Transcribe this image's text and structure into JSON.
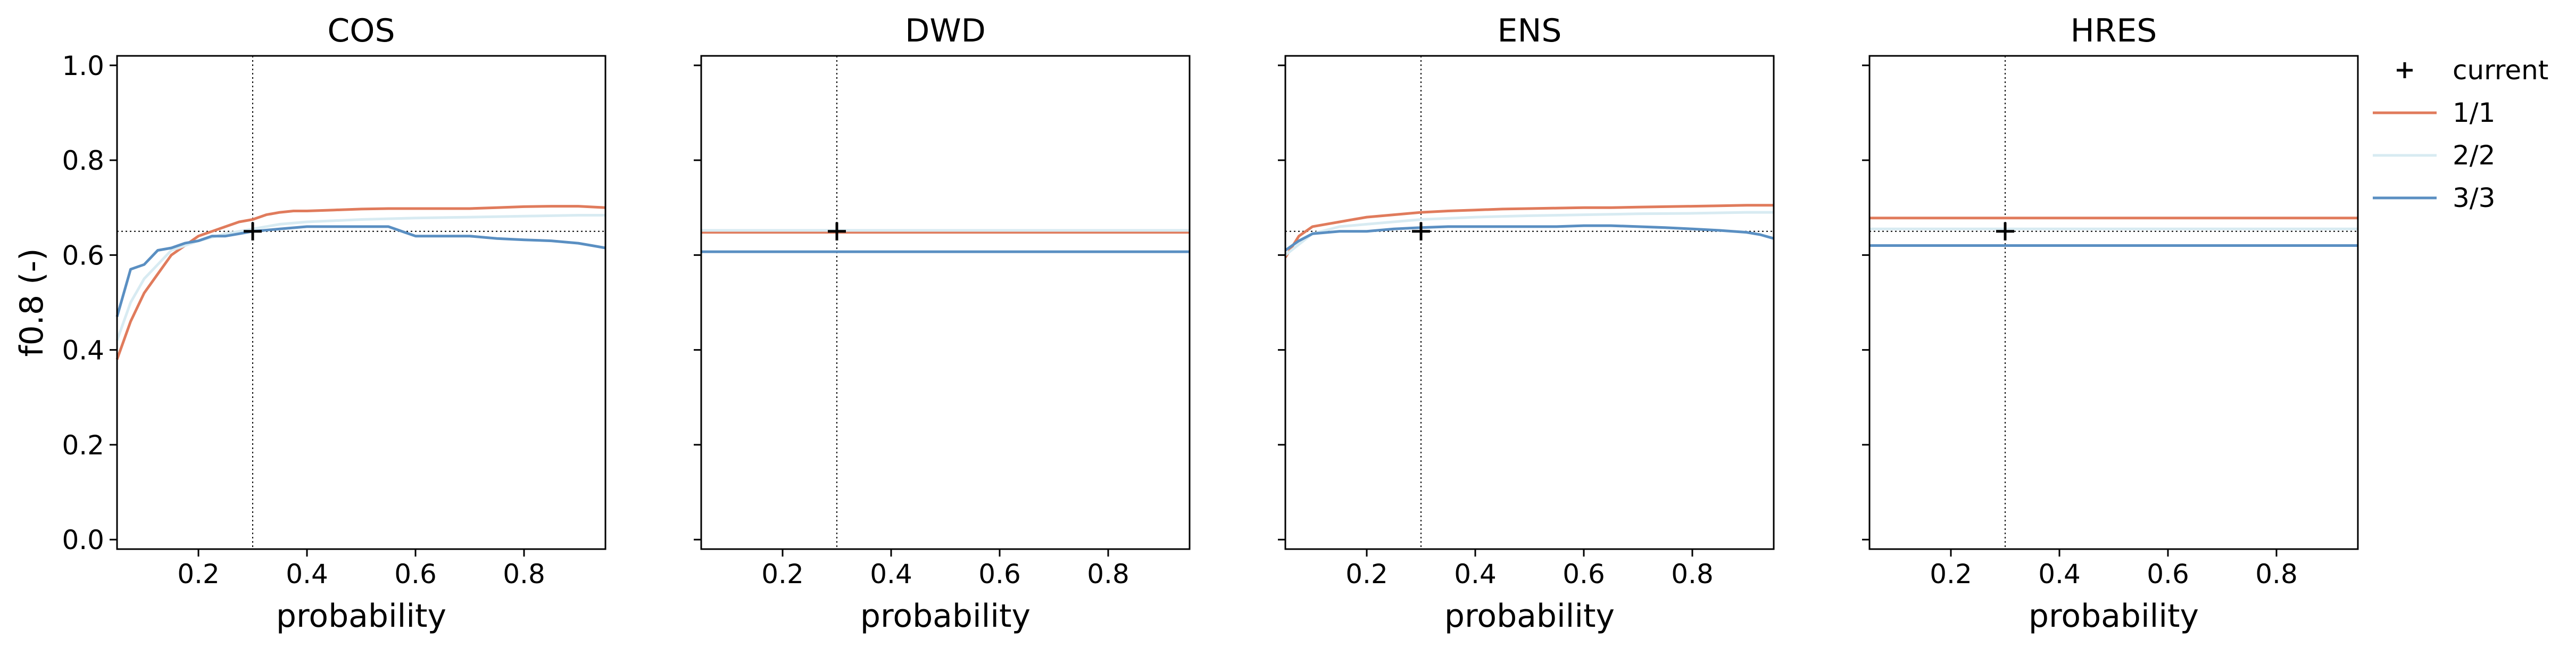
{
  "chart_data": [
    {
      "type": "line",
      "title": "COS",
      "xlabel": "probability",
      "ylabel": "f0.8 (-)",
      "xlim": [
        0.05,
        0.95
      ],
      "ylim": [
        -0.02,
        1.02
      ],
      "xticks": [
        0.2,
        0.4,
        0.6,
        0.8
      ],
      "yticks": [
        0.0,
        0.2,
        0.4,
        0.6,
        0.8,
        1.0
      ],
      "vline": 0.3,
      "hline": 0.65,
      "current": {
        "x": 0.3,
        "y": 0.65
      },
      "series": [
        {
          "name": "1/1",
          "x": [
            0.05,
            0.075,
            0.1,
            0.125,
            0.15,
            0.175,
            0.2,
            0.225,
            0.25,
            0.275,
            0.3,
            0.325,
            0.35,
            0.375,
            0.4,
            0.45,
            0.5,
            0.55,
            0.6,
            0.65,
            0.7,
            0.75,
            0.8,
            0.85,
            0.9,
            0.95
          ],
          "y": [
            0.38,
            0.46,
            0.52,
            0.56,
            0.6,
            0.62,
            0.64,
            0.65,
            0.66,
            0.67,
            0.675,
            0.685,
            0.69,
            0.693,
            0.693,
            0.695,
            0.697,
            0.698,
            0.698,
            0.698,
            0.698,
            0.7,
            0.702,
            0.703,
            0.703,
            0.7
          ]
        },
        {
          "name": "2/2",
          "x": [
            0.05,
            0.075,
            0.1,
            0.125,
            0.15,
            0.2,
            0.25,
            0.3,
            0.35,
            0.4,
            0.5,
            0.6,
            0.7,
            0.8,
            0.9,
            0.95
          ],
          "y": [
            0.42,
            0.5,
            0.55,
            0.58,
            0.61,
            0.63,
            0.645,
            0.655,
            0.665,
            0.67,
            0.675,
            0.678,
            0.68,
            0.682,
            0.684,
            0.684
          ]
        },
        {
          "name": "3/3",
          "x": [
            0.05,
            0.075,
            0.1,
            0.125,
            0.15,
            0.175,
            0.2,
            0.225,
            0.25,
            0.275,
            0.3,
            0.35,
            0.4,
            0.45,
            0.5,
            0.55,
            0.6,
            0.65,
            0.7,
            0.75,
            0.8,
            0.85,
            0.9,
            0.925,
            0.95
          ],
          "y": [
            0.47,
            0.57,
            0.58,
            0.61,
            0.615,
            0.625,
            0.63,
            0.64,
            0.64,
            0.645,
            0.65,
            0.655,
            0.66,
            0.66,
            0.66,
            0.66,
            0.64,
            0.64,
            0.64,
            0.635,
            0.632,
            0.63,
            0.625,
            0.62,
            0.615
          ]
        }
      ]
    },
    {
      "type": "line",
      "title": "DWD",
      "xlabel": "probability",
      "ylabel": "",
      "xlim": [
        0.05,
        0.95
      ],
      "ylim": [
        -0.02,
        1.02
      ],
      "xticks": [
        0.2,
        0.4,
        0.6,
        0.8
      ],
      "yticks": [
        0.0,
        0.2,
        0.4,
        0.6,
        0.8,
        1.0
      ],
      "vline": 0.3,
      "hline": 0.65,
      "current": {
        "x": 0.3,
        "y": 0.65
      },
      "series": [
        {
          "name": "1/1",
          "x": [
            0.05,
            0.95
          ],
          "y": [
            0.648,
            0.648
          ]
        },
        {
          "name": "2/2",
          "x": [
            0.05,
            0.95
          ],
          "y": [
            0.652,
            0.652
          ]
        },
        {
          "name": "3/3",
          "x": [
            0.05,
            0.95
          ],
          "y": [
            0.607,
            0.607
          ]
        }
      ]
    },
    {
      "type": "line",
      "title": "ENS",
      "xlabel": "probability",
      "ylabel": "",
      "xlim": [
        0.05,
        0.95
      ],
      "ylim": [
        -0.02,
        1.02
      ],
      "xticks": [
        0.2,
        0.4,
        0.6,
        0.8
      ],
      "yticks": [
        0.0,
        0.2,
        0.4,
        0.6,
        0.8,
        1.0
      ],
      "vline": 0.3,
      "hline": 0.65,
      "current": {
        "x": 0.3,
        "y": 0.65
      },
      "series": [
        {
          "name": "1/1",
          "x": [
            0.05,
            0.075,
            0.1,
            0.125,
            0.15,
            0.175,
            0.2,
            0.25,
            0.3,
            0.35,
            0.4,
            0.45,
            0.5,
            0.55,
            0.6,
            0.65,
            0.7,
            0.75,
            0.8,
            0.85,
            0.9,
            0.95
          ],
          "y": [
            0.595,
            0.64,
            0.66,
            0.665,
            0.67,
            0.675,
            0.68,
            0.685,
            0.69,
            0.693,
            0.695,
            0.697,
            0.698,
            0.699,
            0.7,
            0.7,
            0.701,
            0.702,
            0.703,
            0.704,
            0.705,
            0.705
          ]
        },
        {
          "name": "2/2",
          "x": [
            0.05,
            0.1,
            0.15,
            0.2,
            0.3,
            0.4,
            0.5,
            0.6,
            0.7,
            0.8,
            0.9,
            0.95
          ],
          "y": [
            0.6,
            0.645,
            0.66,
            0.665,
            0.675,
            0.68,
            0.683,
            0.685,
            0.687,
            0.688,
            0.69,
            0.69
          ]
        },
        {
          "name": "3/3",
          "x": [
            0.05,
            0.075,
            0.1,
            0.15,
            0.2,
            0.25,
            0.3,
            0.35,
            0.4,
            0.45,
            0.5,
            0.55,
            0.6,
            0.65,
            0.7,
            0.75,
            0.8,
            0.85,
            0.9,
            0.925,
            0.95
          ],
          "y": [
            0.61,
            0.63,
            0.645,
            0.65,
            0.65,
            0.655,
            0.658,
            0.66,
            0.66,
            0.66,
            0.66,
            0.66,
            0.662,
            0.662,
            0.66,
            0.658,
            0.655,
            0.652,
            0.648,
            0.643,
            0.635
          ]
        }
      ]
    },
    {
      "type": "line",
      "title": "HRES",
      "xlabel": "probability",
      "ylabel": "",
      "xlim": [
        0.05,
        0.95
      ],
      "ylim": [
        -0.02,
        1.02
      ],
      "xticks": [
        0.2,
        0.4,
        0.6,
        0.8
      ],
      "yticks": [
        0.0,
        0.2,
        0.4,
        0.6,
        0.8,
        1.0
      ],
      "vline": 0.3,
      "hline": 0.65,
      "current": {
        "x": 0.3,
        "y": 0.65
      },
      "series": [
        {
          "name": "1/1",
          "x": [
            0.05,
            0.95
          ],
          "y": [
            0.678,
            0.678
          ]
        },
        {
          "name": "2/2",
          "x": [
            0.05,
            0.95
          ],
          "y": [
            0.655,
            0.655
          ]
        },
        {
          "name": "3/3",
          "x": [
            0.05,
            0.95
          ],
          "y": [
            0.62,
            0.62
          ]
        }
      ]
    }
  ],
  "legend": {
    "placement": "right",
    "items": [
      {
        "label": "current",
        "marker": "plus",
        "color": "#000000"
      },
      {
        "label": "1/1",
        "marker": "line",
        "color": "#e07b5c"
      },
      {
        "label": "2/2",
        "marker": "line",
        "color": "#d8ebf2"
      },
      {
        "label": "3/3",
        "marker": "line",
        "color": "#5a8fc2"
      }
    ]
  },
  "series_colors": {
    "1/1": "#e07b5c",
    "2/2": "#d8ebf2",
    "3/3": "#5a8fc2"
  },
  "tick_format": {
    "decimals": 1
  }
}
